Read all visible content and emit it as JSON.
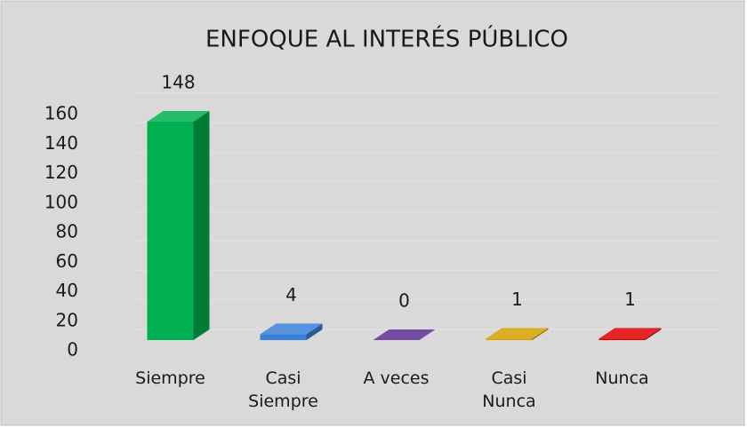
{
  "chart_data": {
    "type": "bar3d",
    "title": "ENFOQUE AL INTERÉS PÚBLICO",
    "categories": [
      "Siempre",
      "Casi Siempre",
      "A veces",
      "Casi Nunca",
      "Nunca"
    ],
    "values": [
      148,
      4,
      0,
      1,
      1
    ],
    "colors": [
      "#00b050",
      "#3a7fd8",
      "#5c2d91",
      "#d4a000",
      "#e00000"
    ],
    "ylim": [
      0,
      160
    ],
    "yticks": [
      0,
      20,
      40,
      60,
      80,
      100,
      120,
      140,
      160
    ],
    "grid": true
  }
}
